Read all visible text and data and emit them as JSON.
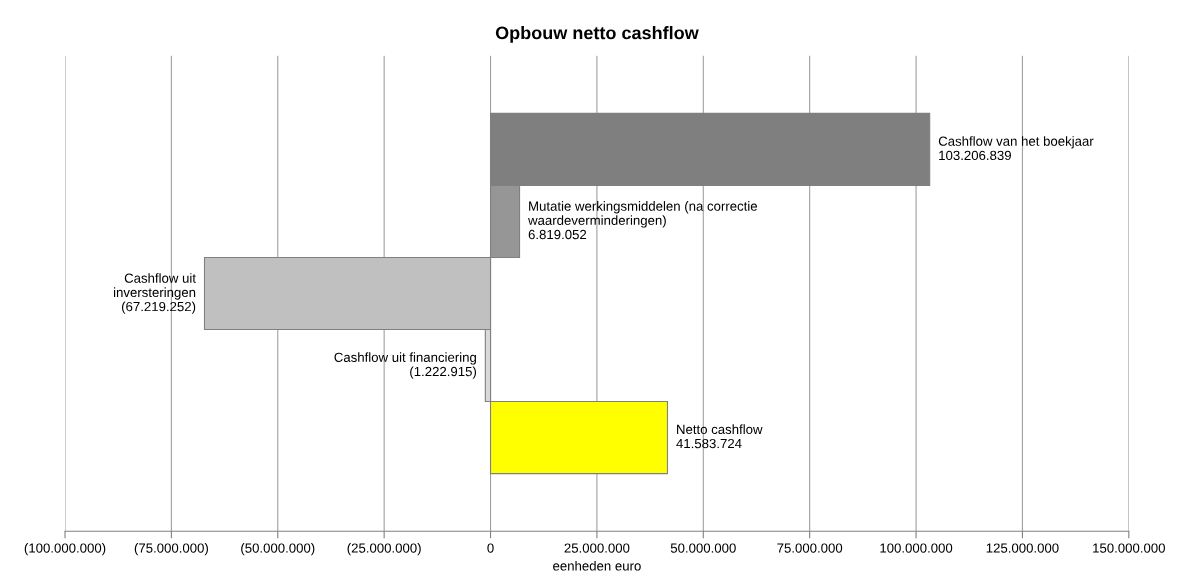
{
  "chart_data": {
    "type": "bar",
    "orientation": "horizontal",
    "title": "Opbouw netto cashflow",
    "xlabel": "eenheden euro",
    "categories": [
      null,
      null,
      null,
      null,
      null
    ],
    "values": [
      103206839,
      6819052,
      -67219252,
      -1222915,
      41583724
    ],
    "colors": [
      "#7f7f7f",
      "#969696",
      "#c0c0c0",
      "#d9d9d9",
      "#ffff00"
    ],
    "value_labels": [
      "Cashflow van het boekjaar\n103.206.839",
      "Mutatie werkingsmiddelen (na correctie\nwaardeverminderingen)\n6.819.052",
      "Cashflow uit\ninversteringen\n(67.219.252)",
      "Cashflow uit financiering\n(1.222.915)",
      "Netto cashflow\n41.583.724"
    ],
    "xlim": [
      -100000000,
      150000000
    ],
    "xticks": [
      {
        "value": -100000000,
        "label": "(100.000.000)"
      },
      {
        "value": -75000000,
        "label": "(75.000.000)"
      },
      {
        "value": -50000000,
        "label": "(50.000.000)"
      },
      {
        "value": -25000000,
        "label": "(25.000.000)"
      },
      0,
      {
        "value": 25000000,
        "label": "25.000.000"
      },
      {
        "value": 50000000,
        "label": "50.000.000"
      },
      {
        "value": 75000000,
        "label": "75.000.000"
      },
      {
        "value": 100000000,
        "label": "100.000.000"
      },
      {
        "value": 125000000,
        "label": "125.000.000"
      },
      {
        "value": 150000000,
        "label": "150.000.000"
      }
    ],
    "grid": "x",
    "tick_labels": "x"
  }
}
